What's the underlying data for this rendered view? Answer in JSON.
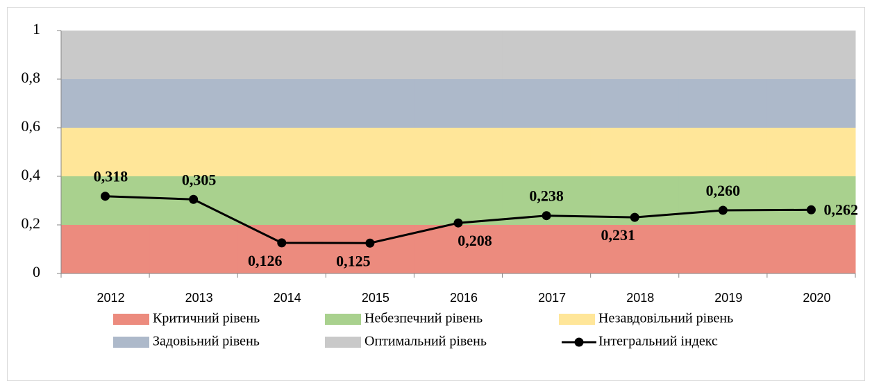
{
  "chart_data": {
    "type": "bar",
    "stacked": true,
    "categories": [
      "2012",
      "2013",
      "2014",
      "2015",
      "2016",
      "2017",
      "2018",
      "2019",
      "2020"
    ],
    "ylim": [
      0,
      1
    ],
    "yticks": [
      0,
      {
        "value": 0.2,
        "label": "0,2"
      },
      {
        "value": 0.4,
        "label": "0,4"
      },
      {
        "value": 0.6,
        "label": "0,6"
      },
      {
        "value": 0.8,
        "label": "0,8"
      },
      1
    ],
    "legend": "bottom",
    "series": [
      {
        "name": "Критичний рівень",
        "color": "#ec8b7e",
        "values": [
          0.2,
          0.2,
          0.2,
          0.2,
          0.2,
          0.2,
          0.2,
          0.2,
          0.2
        ]
      },
      {
        "name": "Небезпечний рівень",
        "color": "#a9d18e",
        "values": [
          0.2,
          0.2,
          0.2,
          0.2,
          0.2,
          0.2,
          0.2,
          0.2,
          0.2
        ]
      },
      {
        "name": "Незавдовільний рівень",
        "color": "#ffe699",
        "values": [
          0.2,
          0.2,
          0.2,
          0.2,
          0.2,
          0.2,
          0.2,
          0.2,
          0.2
        ]
      },
      {
        "name": "Задовіьний рівень",
        "color": "#adb9ca",
        "values": [
          0.2,
          0.2,
          0.2,
          0.2,
          0.2,
          0.2,
          0.2,
          0.2,
          0.2
        ]
      },
      {
        "name": "Оптимальний рівень",
        "color": "#c9c9c9",
        "values": [
          0.2,
          0.2,
          0.2,
          0.2,
          0.2,
          0.2,
          0.2,
          0.2,
          0.2
        ]
      },
      {
        "name": "Інтегральний індекс",
        "type": "line",
        "color": "#000000",
        "values": [
          0.318,
          0.305,
          0.126,
          0.125,
          0.208,
          0.238,
          0.231,
          0.26,
          0.262
        ],
        "value_labels": [
          "0,318",
          "0,305",
          "0,126",
          "0,125",
          "0,208",
          "0,238",
          "0,231",
          "0,260",
          "0,262"
        ]
      }
    ]
  }
}
